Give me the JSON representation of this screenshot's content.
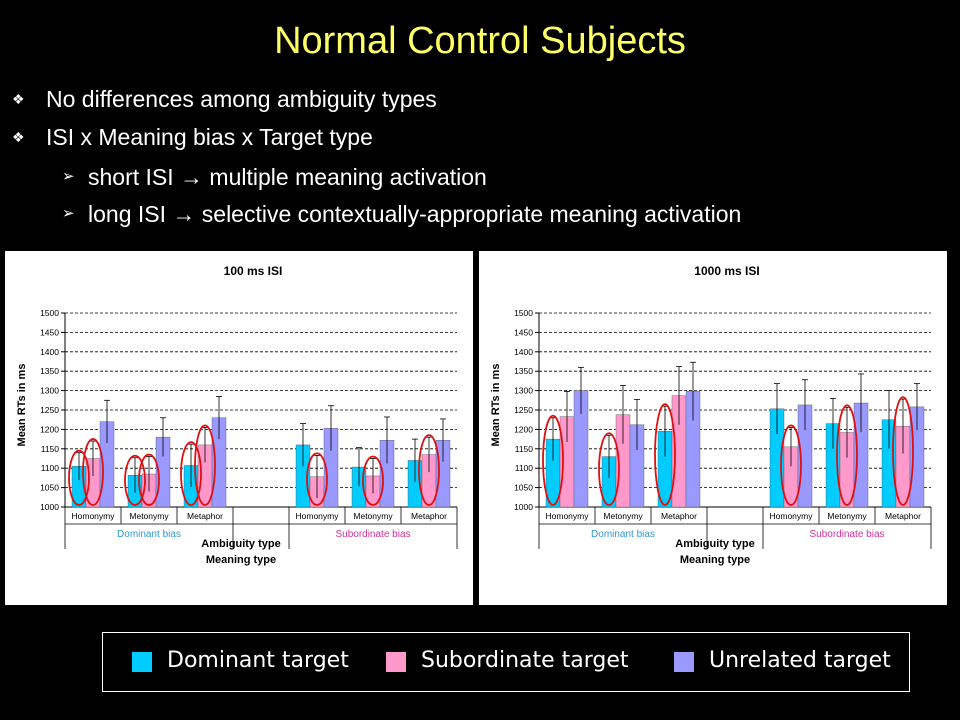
{
  "slide": {
    "title": "Normal Control Subjects",
    "bullets": [
      "No differences among ambiguity types",
      "ISI x Meaning bias x Target type"
    ],
    "subbullets": [
      "short ISI → multiple meaning activation",
      "long ISI → selective contextually-appropriate meaning activation"
    ]
  },
  "legend": [
    {
      "label": "Dominant target",
      "color": "#00ccff"
    },
    {
      "label": "Subordinate target",
      "color": "#ff99cc"
    },
    {
      "label": "Unrelated target",
      "color": "#9999ff"
    }
  ],
  "chart_data": [
    {
      "type": "bar",
      "title": "100 ms ISI",
      "ylabel": "Mean RTs in ms",
      "xlabel": "Ambiguity type",
      "xlabel2": "Meaning type",
      "ylim": [
        1000,
        1500
      ],
      "yticks": [
        1000,
        1050,
        1100,
        1150,
        1200,
        1250,
        1300,
        1350,
        1400,
        1450,
        1500
      ],
      "grid": true,
      "categories": [
        "Homonymy",
        "Metonymy",
        "Metaphor",
        "",
        "Homonymy",
        "Metonymy",
        "Metaphor"
      ],
      "groups": [
        {
          "label": "Dominant bias",
          "color": "#3399cc"
        },
        {
          "label": "Subordinate bias",
          "color": "#cc3399"
        }
      ],
      "series": [
        {
          "name": "Dominant target",
          "color": "#00ccff",
          "values": [
            1105,
            1082,
            1107,
            null,
            1160,
            1103,
            1120
          ],
          "errors": [
            35,
            45,
            55,
            null,
            55,
            50,
            55
          ]
        },
        {
          "name": "Subordinate target",
          "color": "#ff99cc",
          "values": [
            1125,
            1085,
            1160,
            null,
            1078,
            1080,
            1135
          ],
          "errors": [
            45,
            45,
            45,
            null,
            55,
            45,
            45
          ]
        },
        {
          "name": "Unrelated target",
          "color": "#9999ff",
          "values": [
            1220,
            1180,
            1230,
            null,
            1203,
            1172,
            1172
          ],
          "errors": [
            55,
            50,
            55,
            null,
            58,
            60,
            55
          ]
        }
      ],
      "circles": [
        [
          0,
          0
        ],
        [
          0,
          1
        ],
        [
          1,
          0
        ],
        [
          1,
          1
        ],
        [
          2,
          0
        ],
        [
          2,
          1
        ],
        [
          4,
          1
        ],
        [
          5,
          1
        ],
        [
          6,
          1
        ]
      ]
    },
    {
      "type": "bar",
      "title": "1000 ms ISI",
      "ylabel": "Mean RTs in ms",
      "xlabel": "Ambiguity type",
      "xlabel2": "Meaning type",
      "ylim": [
        1000,
        1500
      ],
      "yticks": [
        1000,
        1050,
        1100,
        1150,
        1200,
        1250,
        1300,
        1350,
        1400,
        1450,
        1500
      ],
      "grid": true,
      "categories": [
        "Homonymy",
        "Metonymy",
        "Metaphor",
        "",
        "Homonymy",
        "Metonymy",
        "Metaphor"
      ],
      "groups": [
        {
          "label": "Dominant bias",
          "color": "#3399cc"
        },
        {
          "label": "Subordinate bias",
          "color": "#cc3399"
        }
      ],
      "series": [
        {
          "name": "Dominant target",
          "color": "#00ccff",
          "values": [
            1175,
            1130,
            1195,
            null,
            1253,
            1215,
            1225
          ],
          "errors": [
            55,
            55,
            65,
            null,
            65,
            65,
            75
          ]
        },
        {
          "name": "Subordinate target",
          "color": "#ff99cc",
          "values": [
            1233,
            1238,
            1287,
            null,
            1155,
            1192,
            1208
          ],
          "errors": [
            65,
            75,
            75,
            null,
            50,
            65,
            70
          ]
        },
        {
          "name": "Unrelated target",
          "color": "#9999ff",
          "values": [
            1300,
            1212,
            1298,
            null,
            1263,
            1268,
            1258
          ],
          "errors": [
            60,
            65,
            75,
            null,
            65,
            75,
            60
          ]
        }
      ],
      "circles": [
        [
          0,
          0
        ],
        [
          1,
          0
        ],
        [
          2,
          0
        ],
        [
          4,
          1
        ],
        [
          5,
          1
        ],
        [
          6,
          1
        ]
      ]
    }
  ]
}
